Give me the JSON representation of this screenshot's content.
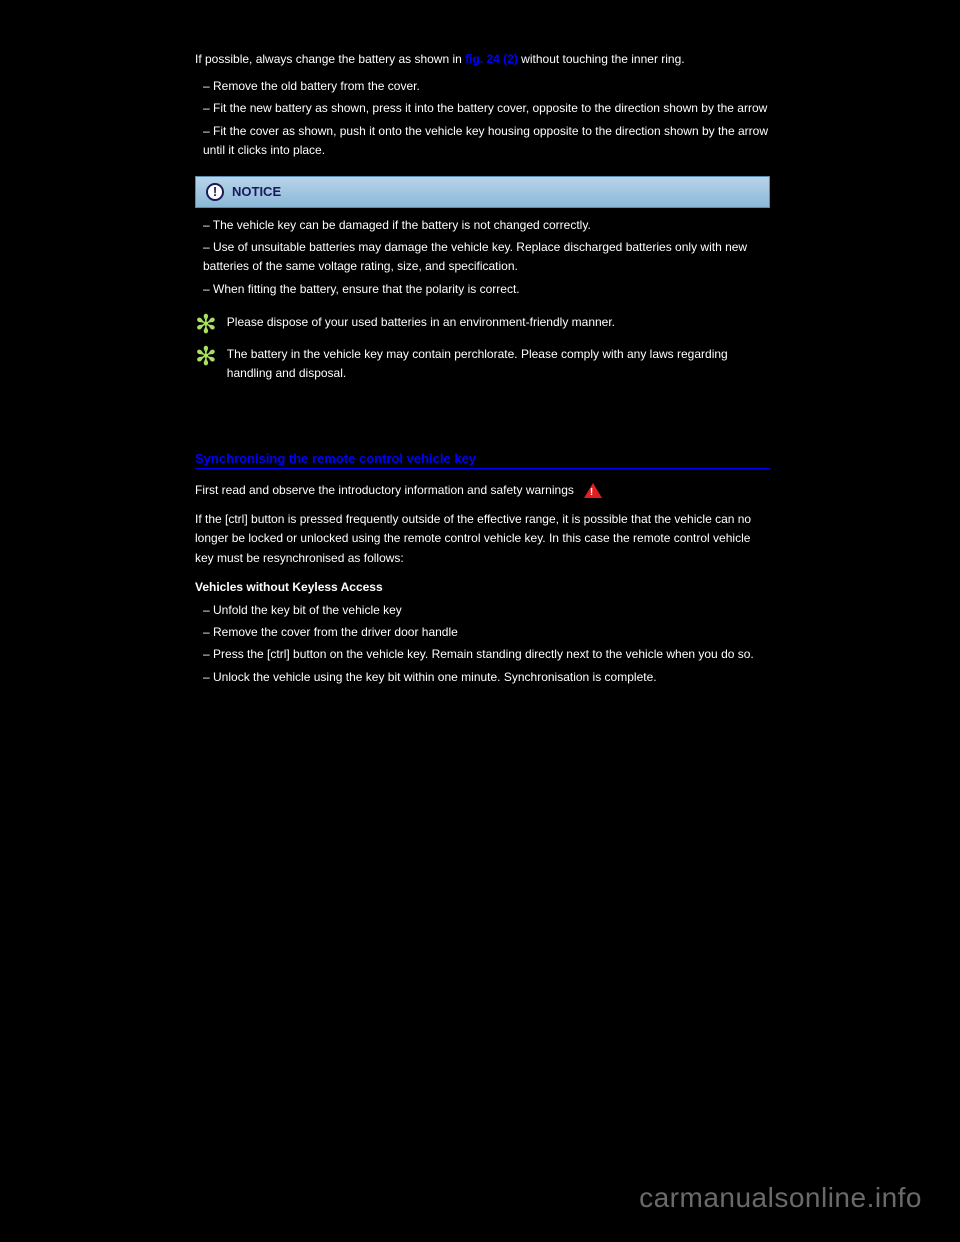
{
  "intro": {
    "text_before_link": "If possible, always change the battery as shown in ",
    "fig_link": "fig. 24 (2)",
    "text_after_link": " without touching the inner ring."
  },
  "bullets": [
    "Remove the old battery from the cover.",
    "Fit the new battery as shown, press it into the battery cover, opposite to the direction shown by the arrow ",
    "Fit the cover as shown, push it onto the vehicle key housing opposite to the direction shown by the arrow until it clicks into place."
  ],
  "notice": {
    "title": "NOTICE",
    "bullets": [
      "The vehicle key can be damaged if the battery is not changed correctly.",
      "Use of unsuitable batteries may damage the vehicle key. Replace discharged batteries only with new batteries of the same voltage rating, size, and specification.",
      "When fitting the battery, ensure that the polarity is correct."
    ]
  },
  "flowers": [
    "Please dispose of your used batteries in an environment-friendly manner.",
    "The battery in the vehicle key may contain perchlorate. Please comply with any laws regarding handling and disposal."
  ],
  "section": {
    "heading": "Synchronising the remote control vehicle key",
    "warn_line": "First read and observe the introductory information and safety warnings",
    "body1": "If the [ctrl] button is pressed frequently outside of the effective range, it is possible that the vehicle can no longer be locked or unlocked using the remote control vehicle key. In this case the remote control vehicle key must be resynchronised as follows:",
    "sub": "Vehicles without Keyless Access",
    "steps": [
      "Unfold the key bit of the vehicle key ",
      "Remove the cover from the driver door handle ",
      "Press the [ctrl] button on the vehicle key. Remain standing directly next to the vehicle when you do so.",
      "Unlock the vehicle using the key bit within one minute. Synchronisation is complete."
    ]
  },
  "watermark": "carmanualsonline.info"
}
